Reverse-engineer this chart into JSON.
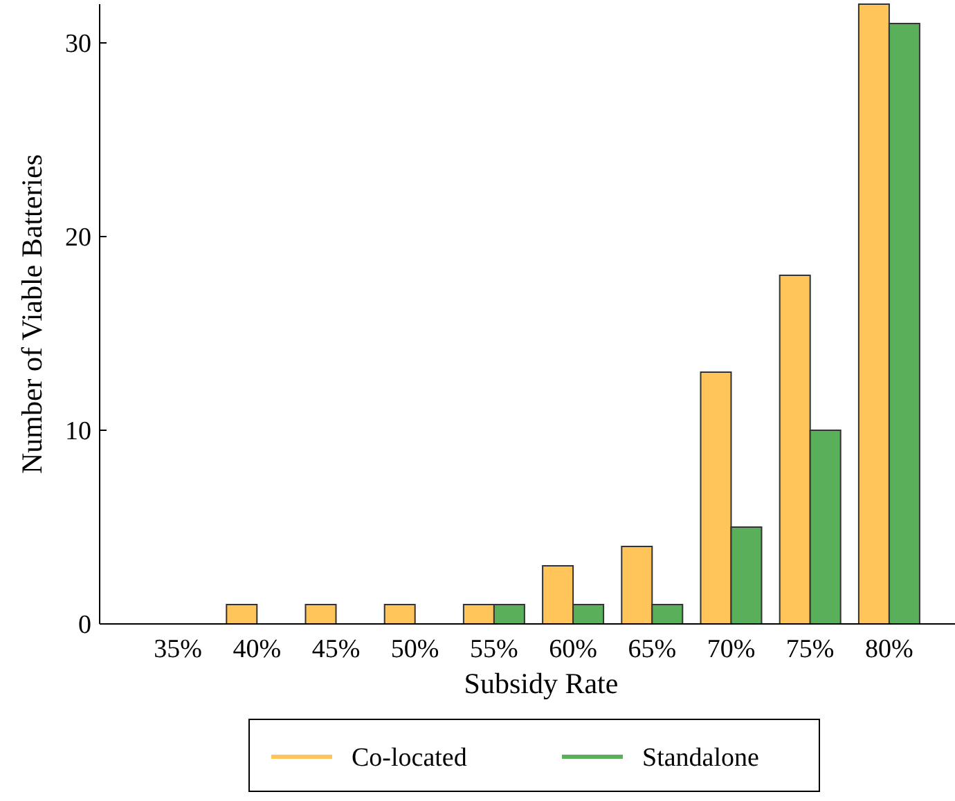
{
  "chart_data": {
    "type": "bar",
    "xlabel": "Subsidy Rate",
    "ylabel": "Number of Viable Batteries",
    "categories": [
      "35%",
      "40%",
      "45%",
      "50%",
      "55%",
      "60%",
      "65%",
      "70%",
      "75%",
      "80%"
    ],
    "series": [
      {
        "name": "Co-located",
        "color": "#ffc55a",
        "values": [
          0,
          1,
          1,
          1,
          1,
          3,
          4,
          13,
          18,
          32
        ]
      },
      {
        "name": "Standalone",
        "color": "#5aaf5a",
        "values": [
          0,
          0,
          0,
          0,
          1,
          1,
          1,
          5,
          10,
          31
        ]
      }
    ],
    "ylim": [
      0,
      32
    ],
    "yticks": [
      0,
      10,
      20,
      30
    ],
    "grid": false,
    "legend": "bottom"
  }
}
